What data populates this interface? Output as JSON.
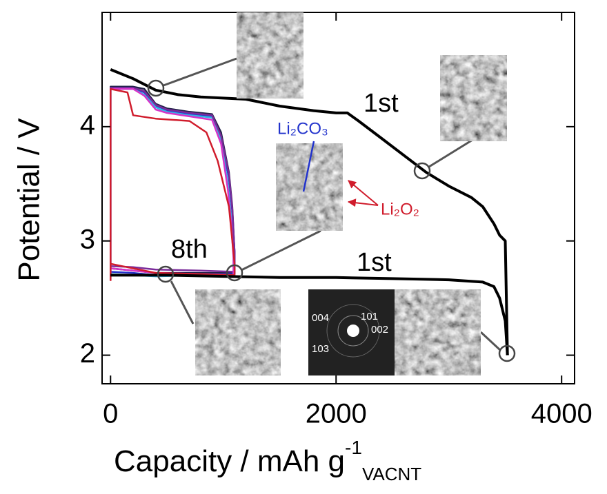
{
  "chart_data": {
    "type": "line",
    "y_label": "Potential / V",
    "x_label": "Capacity / mAh g",
    "x_label_sup": "-1",
    "x_label_sub": "VACNT",
    "xlim": [
      -75,
      4115
    ],
    "ylim": [
      1.75,
      5.0
    ],
    "xticks": [
      0,
      2000,
      4000
    ],
    "yticks": [
      2,
      3,
      4
    ],
    "annotations": [
      "1st",
      "1st",
      "8th",
      "Li₂CO₃",
      "Li₂O₂",
      "004",
      "101",
      "002",
      "103"
    ],
    "series": [
      {
        "color": "#000000",
        "x": [
          0,
          200,
          400,
          600,
          800,
          1000,
          1200,
          1500,
          1800,
          2000,
          2100,
          2200,
          2400,
          2600,
          2800,
          3000,
          3200,
          3300,
          3400,
          3450,
          3500,
          3520
        ],
        "values": [
          4.5,
          4.42,
          4.32,
          4.28,
          4.26,
          4.25,
          4.24,
          4.18,
          4.14,
          4.12,
          4.12,
          4.05,
          3.9,
          3.75,
          3.6,
          3.48,
          3.38,
          3.3,
          3.15,
          3.05,
          3.0,
          2.0
        ]
      },
      {
        "color": "#000000",
        "x": [
          0,
          500,
          1000,
          1500,
          2000,
          2500,
          3000,
          3300,
          3400,
          3450,
          3500,
          3520
        ],
        "values": [
          2.7,
          2.7,
          2.69,
          2.68,
          2.68,
          2.67,
          2.66,
          2.64,
          2.6,
          2.5,
          2.3,
          2.0
        ]
      },
      {
        "color": "#22224a",
        "x": [
          0,
          0,
          200,
          300,
          400,
          500,
          700,
          900,
          980,
          1050,
          1080,
          1100,
          1100,
          800,
          400,
          200,
          0,
          0
        ],
        "values": [
          2.7,
          4.35,
          4.35,
          4.33,
          4.2,
          4.16,
          4.13,
          4.11,
          3.95,
          3.6,
          3.3,
          2.9,
          2.72,
          2.72,
          2.72,
          2.74,
          2.76,
          2.7
        ]
      },
      {
        "color": "#2233cc",
        "x": [
          0,
          0,
          200,
          300,
          400,
          500,
          700,
          900,
          980,
          1050,
          1080,
          1100,
          1100,
          800,
          400,
          200,
          0,
          0
        ],
        "values": [
          2.68,
          4.34,
          4.34,
          4.3,
          4.18,
          4.14,
          4.11,
          4.09,
          3.9,
          3.55,
          3.25,
          2.9,
          2.71,
          2.71,
          2.7,
          2.72,
          2.73,
          2.68
        ]
      },
      {
        "color": "#33b5e5",
        "x": [
          0,
          0,
          200,
          300,
          400,
          500,
          700,
          900,
          980,
          1040,
          1070,
          1090,
          1090,
          800,
          400,
          200,
          0,
          0
        ],
        "values": [
          2.66,
          4.33,
          4.33,
          4.28,
          4.17,
          4.13,
          4.1,
          4.08,
          3.88,
          3.5,
          3.2,
          2.9,
          2.7,
          2.7,
          2.69,
          2.7,
          2.71,
          2.66
        ]
      },
      {
        "color": "#7a2a9a",
        "x": [
          0,
          0,
          200,
          300,
          400,
          500,
          700,
          900,
          980,
          1050,
          1080,
          1100,
          1100,
          800,
          400,
          200,
          0,
          0
        ],
        "values": [
          2.7,
          4.34,
          4.34,
          4.31,
          4.19,
          4.15,
          4.12,
          4.1,
          3.92,
          3.58,
          3.28,
          2.9,
          2.73,
          2.74,
          2.75,
          2.77,
          2.78,
          2.7
        ]
      },
      {
        "color": "#d633c8",
        "x": [
          0,
          0,
          200,
          300,
          400,
          500,
          700,
          900,
          980,
          1040,
          1070,
          1090,
          1090,
          800,
          400,
          200,
          0,
          0
        ],
        "values": [
          2.66,
          4.33,
          4.33,
          4.27,
          4.15,
          4.12,
          4.09,
          4.06,
          3.85,
          3.45,
          3.15,
          2.85,
          2.7,
          2.71,
          2.72,
          2.74,
          2.76,
          2.66
        ]
      },
      {
        "color": "#d01c2c",
        "x": [
          0,
          0,
          150,
          200,
          400,
          700,
          850,
          950,
          1050,
          1080,
          1100,
          1100,
          800,
          400,
          100,
          0,
          0
        ],
        "values": [
          2.65,
          4.33,
          4.3,
          4.1,
          4.07,
          4.05,
          3.95,
          3.7,
          3.3,
          3.0,
          2.8,
          2.7,
          2.71,
          2.72,
          2.78,
          2.8,
          2.65
        ]
      }
    ]
  }
}
